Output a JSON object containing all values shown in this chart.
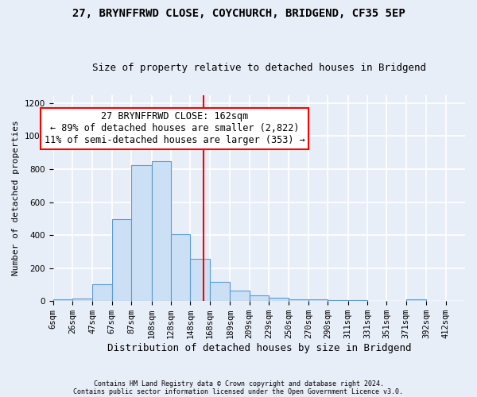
{
  "title1": "27, BRYNFFRWD CLOSE, COYCHURCH, BRIDGEND, CF35 5EP",
  "title2": "Size of property relative to detached houses in Bridgend",
  "xlabel": "Distribution of detached houses by size in Bridgend",
  "ylabel": "Number of detached properties",
  "footnote1": "Contains HM Land Registry data © Crown copyright and database right 2024.",
  "footnote2": "Contains public sector information licensed under the Open Government Licence v3.0.",
  "bin_labels": [
    "6sqm",
    "26sqm",
    "47sqm",
    "67sqm",
    "87sqm",
    "108sqm",
    "128sqm",
    "148sqm",
    "168sqm",
    "189sqm",
    "209sqm",
    "229sqm",
    "250sqm",
    "270sqm",
    "290sqm",
    "311sqm",
    "331sqm",
    "351sqm",
    "371sqm",
    "392sqm",
    "412sqm"
  ],
  "bar_heights": [
    10,
    15,
    100,
    495,
    825,
    850,
    405,
    255,
    115,
    65,
    35,
    20,
    12,
    10,
    8,
    4,
    2,
    2,
    10,
    2,
    2
  ],
  "bar_color": "#cce0f5",
  "bar_edge_color": "#5b9bd5",
  "bin_edges": [
    6,
    26,
    47,
    67,
    87,
    108,
    128,
    148,
    168,
    189,
    209,
    229,
    250,
    270,
    290,
    311,
    331,
    351,
    371,
    392,
    412,
    432
  ],
  "property_size": 162,
  "annotation_title": "27 BRYNFFRWD CLOSE: 162sqm",
  "annotation_line1": "← 89% of detached houses are smaller (2,822)",
  "annotation_line2": "11% of semi-detached houses are larger (353) →",
  "annotation_box_color": "white",
  "annotation_box_edge": "red",
  "vline_color": "red",
  "ylim": [
    0,
    1250
  ],
  "yticks": [
    0,
    200,
    400,
    600,
    800,
    1000,
    1200
  ],
  "background_color": "#e8eef8",
  "grid_color": "white",
  "title1_fontsize": 10,
  "title2_fontsize": 9,
  "xlabel_fontsize": 9,
  "ylabel_fontsize": 8,
  "tick_fontsize": 7.5,
  "annotation_fontsize": 8.5,
  "footnote_fontsize": 6
}
